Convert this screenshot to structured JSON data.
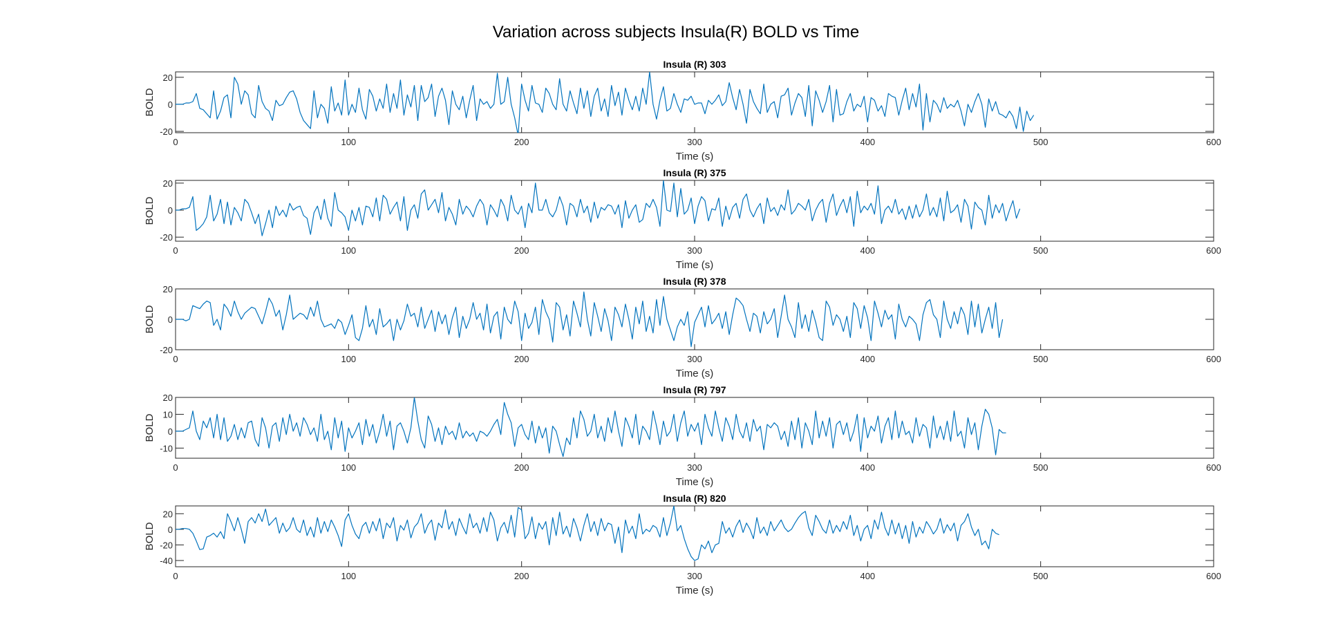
{
  "title": "Variation across subjects Insula(R) BOLD vs Time",
  "chart_data": [
    {
      "type": "line",
      "title": "Insula (R) 303",
      "xlabel": "Time (s)",
      "ylabel": "BOLD",
      "xlim": [
        0,
        600
      ],
      "ylim": [
        -21,
        24
      ],
      "xticks": [
        0,
        100,
        200,
        300,
        400,
        500,
        600
      ],
      "yticks": [
        -20,
        0,
        20
      ],
      "color": "#0072BD",
      "x_start": 0,
      "x_step": 2,
      "y": [
        0,
        0,
        0,
        1,
        1,
        2,
        8,
        -3,
        -4,
        -7,
        -10,
        10,
        -11,
        -5,
        5,
        7,
        -10,
        20,
        15,
        0,
        10,
        7,
        -7,
        -10,
        14,
        2,
        -3,
        -5,
        -12,
        3,
        -1,
        0,
        5,
        9,
        10,
        4,
        -6,
        -12,
        -15,
        -18,
        10,
        -10,
        0,
        -3,
        -14,
        13,
        -5,
        1,
        -8,
        18,
        -8,
        0,
        -6,
        12,
        -4,
        -11,
        11,
        6,
        -5,
        4,
        -3,
        15,
        -6,
        8,
        -3,
        18,
        -8,
        7,
        -2,
        14,
        -12,
        14,
        2,
        5,
        15,
        -9,
        6,
        12,
        3,
        -15,
        10,
        0,
        -4,
        6,
        -10,
        3,
        14,
        -12,
        4,
        0,
        2,
        -3,
        0,
        23,
        0,
        2,
        20,
        0,
        -10,
        -23,
        15,
        3,
        -5,
        14,
        1,
        0,
        -6,
        12,
        8,
        0,
        -4,
        19,
        0,
        -5,
        10,
        1,
        -7,
        12,
        -3,
        10,
        -9,
        6,
        12,
        -5,
        4,
        -9,
        14,
        -1,
        9,
        -8,
        12,
        3,
        -4,
        6,
        -5,
        12,
        0,
        24,
        0,
        -11,
        3,
        13,
        -5,
        -3,
        8,
        0,
        -6,
        4,
        3,
        6,
        0,
        1,
        1,
        -7,
        3,
        0,
        3,
        7,
        -1,
        2,
        16,
        5,
        -4,
        11,
        0,
        -14,
        11,
        2,
        -3,
        -7,
        15,
        -6,
        0,
        2,
        -10,
        6,
        7,
        12,
        -8,
        1,
        8,
        5,
        -9,
        14,
        -16,
        10,
        3,
        -6,
        2,
        14,
        -13,
        11,
        -8,
        -7,
        2,
        8,
        -5,
        0,
        -2,
        6,
        -13,
        5,
        3,
        -5,
        -1,
        -9,
        8,
        6,
        5,
        -8,
        3,
        12,
        -4,
        8,
        -2,
        15,
        -19,
        8,
        -13,
        3,
        0,
        -6,
        5,
        -3,
        0,
        -2,
        3,
        -5,
        -16,
        0,
        -6,
        2,
        8,
        0,
        -17,
        4,
        -5,
        2,
        -7,
        -8,
        -10,
        -5,
        -9,
        -18,
        -2,
        -20,
        -5,
        -12,
        -8
      ]
    },
    {
      "type": "line",
      "title": "Insula (R) 375",
      "xlabel": "Time (s)",
      "ylabel": "BOLD",
      "xlim": [
        0,
        600
      ],
      "ylim": [
        -23,
        22
      ],
      "xticks": [
        0,
        100,
        200,
        300,
        400,
        500,
        600
      ],
      "yticks": [
        -20,
        0,
        20
      ],
      "color": "#0072BD",
      "x_start": 0,
      "x_step": 2,
      "y": [
        0,
        0,
        1,
        1,
        2,
        10,
        -15,
        -13,
        -10,
        -5,
        11,
        -8,
        -3,
        8,
        -10,
        6,
        -11,
        2,
        -2,
        -8,
        8,
        5,
        -2,
        -10,
        -3,
        -19,
        -10,
        0,
        -13,
        3,
        -4,
        0,
        -5,
        5,
        0,
        2,
        3,
        -4,
        -6,
        -18,
        -2,
        3,
        -7,
        8,
        -6,
        -12,
        13,
        0,
        -2,
        -5,
        -15,
        0,
        -8,
        2,
        -11,
        3,
        2,
        -5,
        9,
        -8,
        11,
        8,
        -3,
        2,
        6,
        -8,
        10,
        -15,
        0,
        4,
        -6,
        12,
        15,
        0,
        4,
        8,
        -2,
        13,
        -8,
        2,
        -3,
        -11,
        8,
        -3,
        3,
        0,
        -5,
        3,
        8,
        4,
        -11,
        4,
        0,
        -5,
        8,
        3,
        -8,
        11,
        0,
        -3,
        3,
        -13,
        5,
        -2,
        20,
        0,
        0,
        8,
        -2,
        -5,
        0,
        10,
        3,
        -11,
        5,
        3,
        -5,
        8,
        -2,
        3,
        -9,
        6,
        -6,
        2,
        0,
        4,
        3,
        -3,
        4,
        -13,
        7,
        -6,
        0,
        4,
        -9,
        -7,
        5,
        2,
        8,
        2,
        -12,
        22,
        0,
        -1,
        20,
        -5,
        16,
        -3,
        0,
        9,
        -10,
        3,
        10,
        7,
        -8,
        1,
        0,
        9,
        -12,
        3,
        -7,
        2,
        5,
        -6,
        8,
        12,
        0,
        -5,
        1,
        5,
        -10,
        9,
        -1,
        2,
        -4,
        4,
        0,
        15,
        -3,
        0,
        5,
        3,
        0,
        8,
        -8,
        0,
        5,
        8,
        -9,
        5,
        12,
        -4,
        3,
        8,
        -2,
        10,
        -12,
        14,
        -2,
        3,
        0,
        5,
        -3,
        18,
        -10,
        0,
        3,
        -2,
        8,
        -3,
        1,
        -7,
        3,
        -6,
        4,
        -5,
        0,
        12,
        -4,
        2,
        -5,
        9,
        -8,
        14,
        -2,
        0,
        4,
        -9,
        8,
        3,
        -14,
        6,
        2,
        0,
        -11,
        11,
        -6,
        4,
        -2,
        5,
        -8,
        0,
        7,
        -6,
        1
      ]
    },
    {
      "type": "line",
      "title": "Insula (R) 378",
      "xlabel": "Time (s)",
      "ylabel": "BOLD",
      "xlim": [
        0,
        600
      ],
      "ylim": [
        -20,
        20
      ],
      "xticks": [
        0,
        100,
        200,
        300,
        400,
        500,
        600
      ],
      "yticks": [
        -20,
        0,
        20
      ],
      "color": "#0072BD",
      "x_start": 0,
      "x_step": 2,
      "y": [
        0,
        0,
        0,
        -1,
        0,
        9,
        8,
        7,
        10,
        12,
        11,
        -4,
        0,
        -7,
        10,
        7,
        2,
        12,
        5,
        0,
        4,
        6,
        8,
        7,
        2,
        -3,
        5,
        14,
        10,
        2,
        6,
        -7,
        3,
        16,
        0,
        2,
        4,
        3,
        0,
        8,
        2,
        12,
        0,
        -5,
        -4,
        -3,
        -6,
        0,
        -2,
        -10,
        -4,
        3,
        -12,
        -14,
        -6,
        9,
        -5,
        0,
        -10,
        7,
        -5,
        -3,
        0,
        -14,
        0,
        -7,
        -1,
        10,
        2,
        4,
        -5,
        8,
        -6,
        0,
        6,
        -8,
        5,
        -3,
        3,
        -10,
        1,
        8,
        -12,
        2,
        -6,
        0,
        11,
        0,
        4,
        -7,
        10,
        -9,
        2,
        5,
        -13,
        8,
        0,
        -3,
        12,
        5,
        -14,
        4,
        -6,
        -2,
        8,
        -10,
        13,
        5,
        0,
        -15,
        11,
        8,
        -7,
        3,
        -11,
        12,
        4,
        -5,
        18,
        0,
        -11,
        11,
        2,
        -8,
        7,
        -1,
        -14,
        8,
        3,
        -5,
        10,
        0,
        -13,
        8,
        -3,
        12,
        -8,
        2,
        -9,
        13,
        -4,
        15,
        0,
        -7,
        -14,
        -5,
        0,
        -4,
        5,
        -18,
        -2,
        3,
        8,
        -5,
        9,
        -3,
        0,
        4,
        -6,
        5,
        -10,
        3,
        14,
        12,
        9,
        0,
        -8,
        4,
        2,
        -9,
        5,
        -3,
        0,
        7,
        -12,
        2,
        16,
        0,
        -5,
        -12,
        11,
        -6,
        3,
        -8,
        6,
        -2,
        -12,
        -14,
        12,
        8,
        -4,
        3,
        0,
        -8,
        2,
        -12,
        11,
        7,
        -6,
        9,
        1,
        -14,
        12,
        4,
        -5,
        6,
        0,
        3,
        -13,
        10,
        0,
        -5,
        2,
        0,
        -3,
        -14,
        3,
        11,
        13,
        3,
        0,
        -12,
        12,
        0,
        -6,
        5,
        -3,
        8,
        3,
        -10,
        12,
        -5,
        10,
        -9,
        0,
        8,
        -6,
        11,
        -12,
        0
      ]
    },
    {
      "type": "line",
      "title": "Insula (R) 797",
      "xlabel": "Time (s)",
      "ylabel": "BOLD",
      "xlim": [
        0,
        600
      ],
      "ylim": [
        -16,
        20
      ],
      "xticks": [
        0,
        100,
        200,
        300,
        400,
        500,
        600
      ],
      "yticks": [
        -10,
        0,
        10,
        20
      ],
      "color": "#0072BD",
      "x_start": 0,
      "x_step": 2,
      "y": [
        0,
        0,
        0,
        1,
        2,
        12,
        0,
        -5,
        6,
        2,
        8,
        -4,
        10,
        -5,
        8,
        -6,
        -3,
        4,
        -5,
        2,
        -4,
        5,
        6,
        -5,
        -9,
        8,
        2,
        -10,
        3,
        5,
        -6,
        8,
        -2,
        10,
        0,
        5,
        -3,
        8,
        4,
        -2,
        2,
        -6,
        10,
        -5,
        0,
        -11,
        8,
        -4,
        6,
        -12,
        2,
        -4,
        0,
        5,
        -8,
        7,
        -3,
        4,
        -7,
        0,
        10,
        -3,
        6,
        -11,
        3,
        5,
        0,
        -7,
        2,
        20,
        6,
        -5,
        -10,
        9,
        4,
        -6,
        2,
        -8,
        3,
        -2,
        0,
        -5,
        5,
        -4,
        0,
        -3,
        -1,
        -6,
        0,
        -1,
        -3,
        0,
        4,
        7,
        -2,
        17,
        10,
        5,
        -9,
        2,
        4,
        -2,
        -5,
        6,
        -7,
        3,
        -4,
        2,
        -13,
        3,
        0,
        -8,
        -15,
        -4,
        -8,
        8,
        -4,
        12,
        7,
        -3,
        0,
        10,
        -4,
        3,
        -6,
        8,
        -1,
        12,
        0,
        -9,
        8,
        3,
        -4,
        10,
        -8,
        3,
        0,
        -5,
        12,
        3,
        -8,
        6,
        -3,
        0,
        10,
        -6,
        5,
        12,
        -3,
        4,
        0,
        5,
        -8,
        10,
        2,
        -3,
        12,
        2,
        -6,
        8,
        3,
        -5,
        10,
        0,
        -4,
        5,
        -6,
        7,
        0,
        3,
        -11,
        4,
        2,
        5,
        3,
        -5,
        0,
        -9,
        6,
        -5,
        8,
        -10,
        5,
        0,
        -8,
        12,
        -4,
        6,
        -3,
        8,
        -10,
        4,
        6,
        -2,
        5,
        -6,
        0,
        10,
        -12,
        8,
        -4,
        3,
        0,
        9,
        -7,
        3,
        8,
        -5,
        12,
        -4,
        6,
        -2,
        0,
        -7,
        8,
        -3,
        4,
        2,
        -10,
        9,
        -4,
        3,
        -5,
        6,
        -6,
        12,
        -3,
        0,
        -10,
        8,
        -2,
        5,
        -11,
        3,
        13,
        10,
        2,
        -14,
        1,
        -1,
        -1
      ]
    },
    {
      "type": "line",
      "title": "Insula (R) 820",
      "xlabel": "Time (s)",
      "ylabel": "BOLD",
      "xlim": [
        0,
        600
      ],
      "ylim": [
        -48,
        30
      ],
      "xticks": [
        0,
        100,
        200,
        300,
        400,
        500,
        600
      ],
      "yticks": [
        -40,
        -20,
        0,
        20
      ],
      "color": "#0072BD",
      "x_start": 0,
      "x_step": 2,
      "y": [
        0,
        0,
        1,
        1,
        0,
        -5,
        -15,
        -26,
        -25,
        -10,
        -8,
        -5,
        -10,
        -3,
        -12,
        20,
        10,
        -2,
        15,
        0,
        -18,
        10,
        15,
        8,
        20,
        10,
        26,
        5,
        10,
        15,
        -5,
        8,
        -3,
        2,
        15,
        0,
        -4,
        12,
        -8,
        3,
        -10,
        15,
        -5,
        10,
        -3,
        12,
        3,
        -8,
        -22,
        12,
        20,
        5,
        -6,
        -12,
        4,
        9,
        -5,
        10,
        -2,
        14,
        -12,
        8,
        2,
        15,
        -15,
        5,
        -1,
        12,
        -11,
        3,
        8,
        20,
        -5,
        6,
        12,
        -14,
        8,
        2,
        25,
        0,
        10,
        -8,
        14,
        3,
        -6,
        20,
        2,
        8,
        -5,
        15,
        -3,
        22,
        12,
        -15,
        2,
        9,
        -5,
        18,
        -10,
        28,
        25,
        -12,
        -5,
        16,
        -12,
        8,
        0,
        10,
        -20,
        15,
        -8,
        22,
        -6,
        4,
        -10,
        14,
        2,
        -15,
        5,
        20,
        -3,
        10,
        -8,
        14,
        -2,
        8,
        6,
        -18,
        3,
        -30,
        12,
        -5,
        4,
        -12,
        20,
        -6,
        0,
        -3,
        5,
        2,
        -10,
        15,
        -8,
        8,
        30,
        -2,
        5,
        -12,
        -25,
        -35,
        -40,
        -38,
        -20,
        -25,
        -15,
        -30,
        -20,
        -18,
        10,
        -5,
        2,
        -10,
        4,
        12,
        -4,
        8,
        0,
        -12,
        15,
        -5,
        3,
        -8,
        10,
        -2,
        5,
        12,
        2,
        -3,
        0,
        8,
        15,
        20,
        23,
        2,
        -8,
        18,
        10,
        0,
        -5,
        12,
        -5,
        5,
        -3,
        10,
        0,
        18,
        -8,
        5,
        -15,
        0,
        5,
        -12,
        12,
        0,
        22,
        2,
        -8,
        12,
        -6,
        8,
        -12,
        5,
        -18,
        10,
        -10,
        3,
        -5,
        10,
        3,
        -6,
        0,
        14,
        -5,
        6,
        -2,
        8,
        -15,
        5,
        10,
        20,
        3,
        -8,
        0,
        -20,
        -15,
        -25,
        0,
        -5,
        -7
      ]
    }
  ]
}
